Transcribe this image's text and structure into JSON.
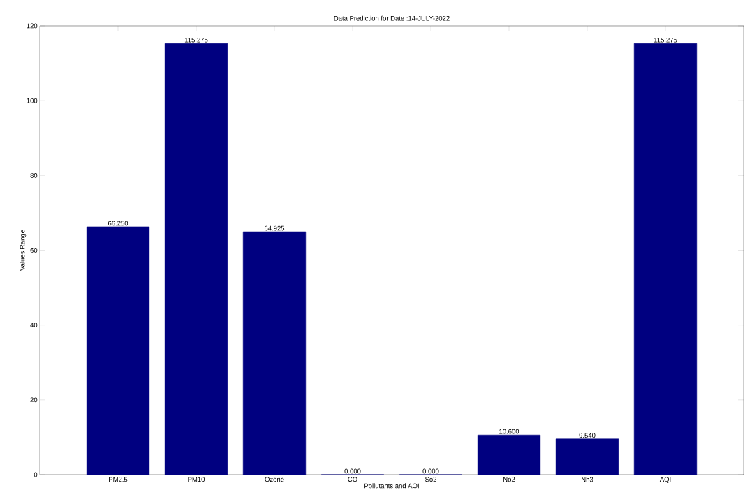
{
  "chart_data": {
    "type": "bar",
    "title": "Data Prediction for Date :14-JULY-2022",
    "xlabel": "Pollutants and AQI",
    "ylabel": "Values Range",
    "categories": [
      "PM2.5",
      "PM10",
      "Ozone",
      "CO",
      "So2",
      "No2",
      "Nh3",
      "AQI"
    ],
    "values": [
      66.25,
      115.275,
      64.925,
      0,
      0,
      10.6,
      9.54,
      115.275
    ],
    "value_labels": [
      "66.250",
      "115.275",
      "64.925",
      "0.000",
      "0.000",
      "10.600",
      "9.540",
      "115.275"
    ],
    "color": "#000080",
    "ylim": [
      0,
      120
    ],
    "yticks": [
      0,
      20,
      40,
      60,
      80,
      100,
      120
    ]
  }
}
